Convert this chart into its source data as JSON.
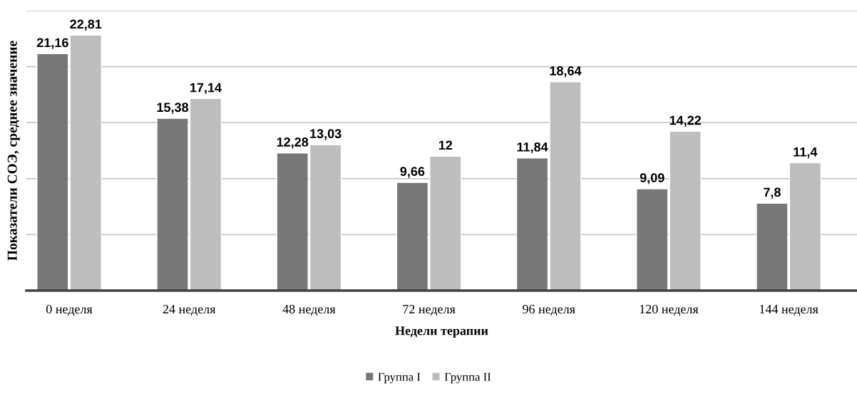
{
  "chart_data": {
    "type": "bar",
    "xlabel": "Недели терапии",
    "ylabel": "Показатели СОЭ, среднее значение",
    "categories": [
      "0 неделя",
      "24 неделя",
      "48 неделя",
      "72 неделя",
      "96 неделя",
      "120 неделя",
      "144 неделя"
    ],
    "series": [
      {
        "name": "Группа I",
        "color": "#777777",
        "values": [
          21.16,
          15.38,
          12.28,
          9.66,
          11.84,
          9.09,
          7.8
        ],
        "value_labels": [
          "21,16",
          "15,38",
          "12,28",
          "9,66",
          "11,84",
          "9,09",
          "7,8"
        ]
      },
      {
        "name": "Группа II",
        "color": "#bdbdbd",
        "values": [
          22.81,
          17.14,
          13.03,
          12,
          18.64,
          14.22,
          11.4
        ],
        "value_labels": [
          "22,81",
          "17,14",
          "13,03",
          "12",
          "18,64",
          "14,22",
          "11,4"
        ]
      }
    ],
    "ylim": [
      0,
      25
    ],
    "yticks": [
      {
        "value": 5,
        "label": null
      },
      {
        "value": 10,
        "label": null
      },
      {
        "value": 15,
        "label": null
      },
      {
        "value": 20,
        "label": null
      },
      {
        "value": 25,
        "label": null
      }
    ],
    "grid": "y",
    "legend": "bottom",
    "tick_labels": "x"
  }
}
